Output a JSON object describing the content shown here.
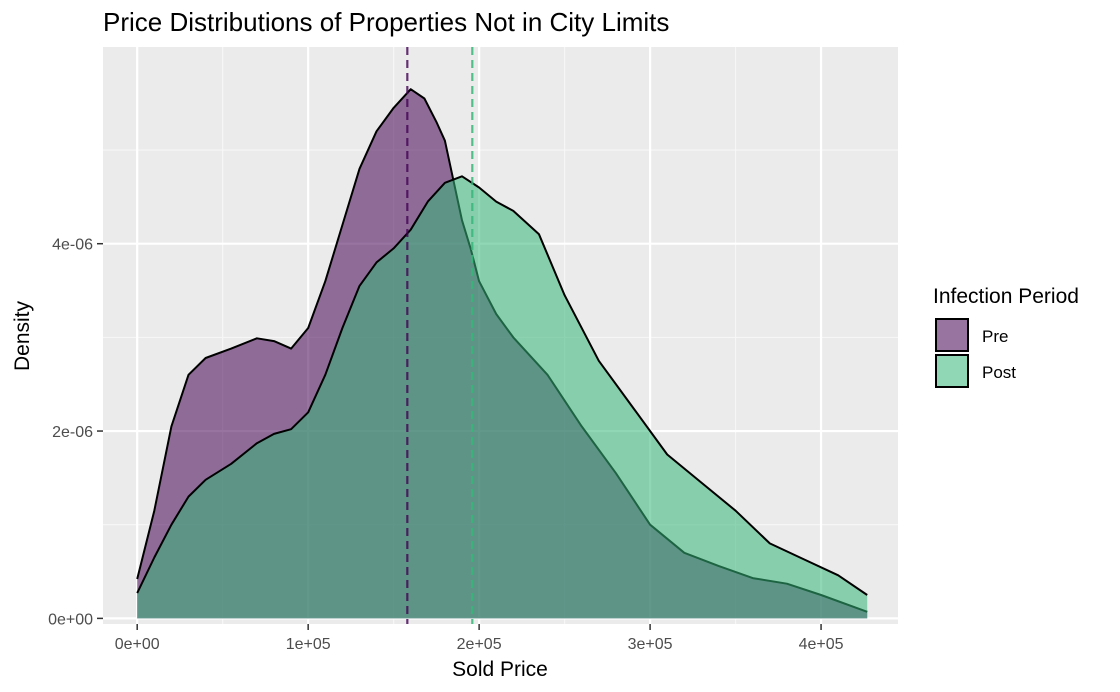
{
  "chart_data": {
    "type": "area",
    "title": "Price Distributions of Properties Not in City Limits",
    "xlabel": "Sold Price",
    "ylabel": "Density",
    "xlim": [
      -20000,
      445000
    ],
    "ylim": [
      -6e-08,
      6.1e-06
    ],
    "x_ticks": [
      0,
      100000,
      200000,
      300000,
      400000
    ],
    "x_tick_labels": [
      "0e+00",
      "1e+05",
      "2e+05",
      "3e+05",
      "4e+05"
    ],
    "y_ticks": [
      0,
      2e-06,
      4e-06
    ],
    "y_tick_labels": [
      "0e+00",
      "2e-06",
      "4e-06"
    ],
    "grid": true,
    "legend": {
      "title": "Infection Period",
      "position": "right"
    },
    "series": [
      {
        "name": "Pre",
        "color": "#440154",
        "fill_opacity": 0.55,
        "mean": 158000,
        "points": [
          [
            0,
            4.2e-07
          ],
          [
            10000,
            1.15e-06
          ],
          [
            20000,
            2.05e-06
          ],
          [
            30000,
            2.6e-06
          ],
          [
            40000,
            2.78e-06
          ],
          [
            55000,
            2.88e-06
          ],
          [
            70000,
            2.99e-06
          ],
          [
            80000,
            2.96e-06
          ],
          [
            90000,
            2.88e-06
          ],
          [
            100000,
            3.1e-06
          ],
          [
            110000,
            3.6e-06
          ],
          [
            120000,
            4.2e-06
          ],
          [
            130000,
            4.8e-06
          ],
          [
            140000,
            5.2e-06
          ],
          [
            150000,
            5.45e-06
          ],
          [
            160000,
            5.65e-06
          ],
          [
            168000,
            5.55e-06
          ],
          [
            175000,
            5.3e-06
          ],
          [
            180000,
            5.1e-06
          ],
          [
            190000,
            4.25e-06
          ],
          [
            195000,
            3.95e-06
          ],
          [
            200000,
            3.6e-06
          ],
          [
            210000,
            3.25e-06
          ],
          [
            220000,
            3e-06
          ],
          [
            240000,
            2.6e-06
          ],
          [
            260000,
            2.05e-06
          ],
          [
            280000,
            1.55e-06
          ],
          [
            300000,
            1e-06
          ],
          [
            320000,
            7e-07
          ],
          [
            340000,
            5.6e-07
          ],
          [
            360000,
            4.3e-07
          ],
          [
            380000,
            3.7e-07
          ],
          [
            400000,
            2.5e-07
          ],
          [
            427000,
            7e-08
          ]
        ]
      },
      {
        "name": "Post",
        "color": "#35b779",
        "fill_opacity": 0.55,
        "mean": 196000,
        "points": [
          [
            0,
            2.7e-07
          ],
          [
            10000,
            6.5e-07
          ],
          [
            20000,
            1e-06
          ],
          [
            30000,
            1.3e-06
          ],
          [
            40000,
            1.48e-06
          ],
          [
            55000,
            1.65e-06
          ],
          [
            70000,
            1.87e-06
          ],
          [
            80000,
            1.97e-06
          ],
          [
            90000,
            2.02e-06
          ],
          [
            100000,
            2.2e-06
          ],
          [
            110000,
            2.6e-06
          ],
          [
            120000,
            3.1e-06
          ],
          [
            130000,
            3.55e-06
          ],
          [
            140000,
            3.8e-06
          ],
          [
            150000,
            3.95e-06
          ],
          [
            160000,
            4.15e-06
          ],
          [
            170000,
            4.45e-06
          ],
          [
            180000,
            4.65e-06
          ],
          [
            190000,
            4.72e-06
          ],
          [
            200000,
            4.6e-06
          ],
          [
            210000,
            4.45e-06
          ],
          [
            220000,
            4.35e-06
          ],
          [
            235000,
            4.1e-06
          ],
          [
            250000,
            3.45e-06
          ],
          [
            270000,
            2.75e-06
          ],
          [
            290000,
            2.25e-06
          ],
          [
            310000,
            1.75e-06
          ],
          [
            330000,
            1.45e-06
          ],
          [
            350000,
            1.15e-06
          ],
          [
            370000,
            8e-07
          ],
          [
            390000,
            6.3e-07
          ],
          [
            410000,
            4.6e-07
          ],
          [
            427000,
            2.5e-07
          ]
        ]
      }
    ]
  }
}
